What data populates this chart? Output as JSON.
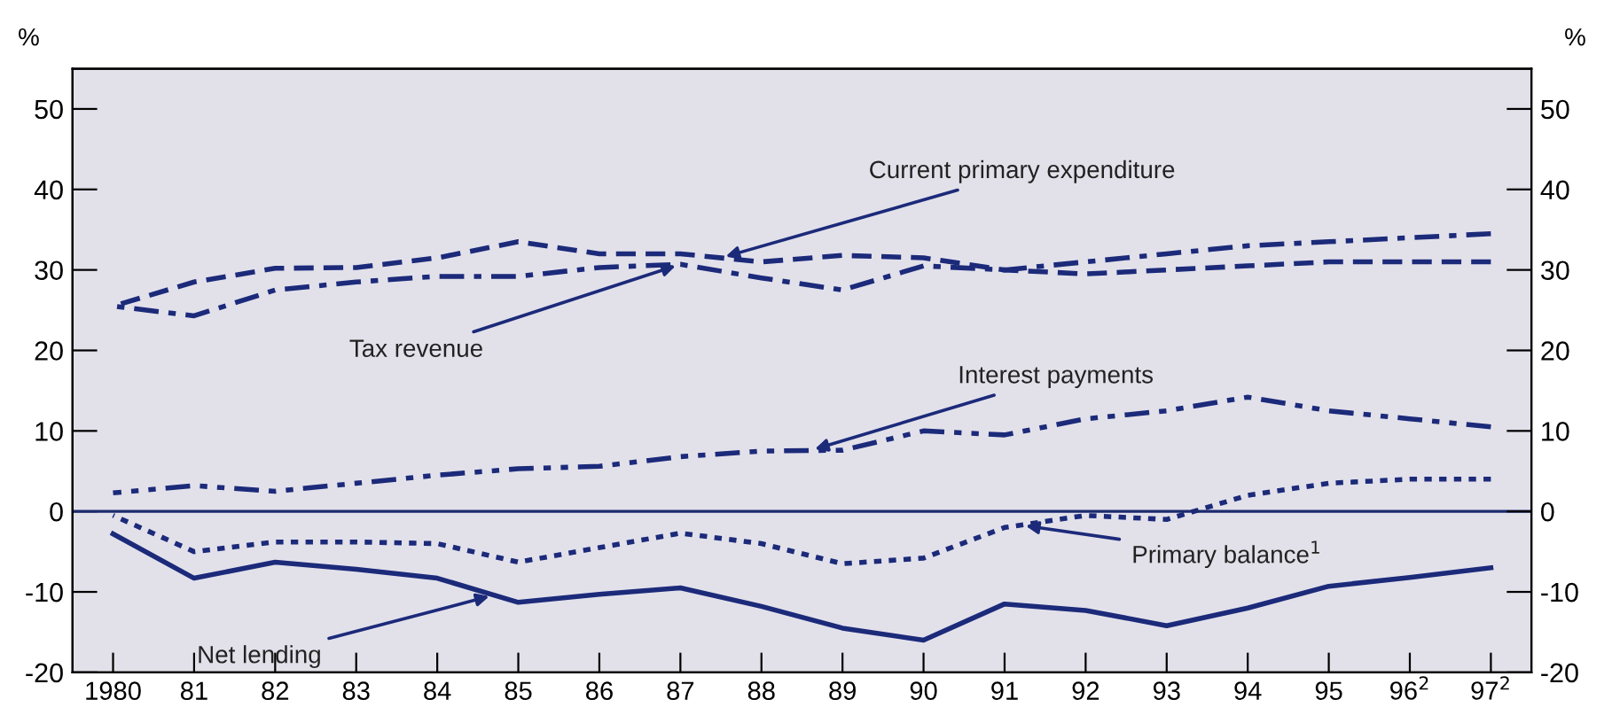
{
  "chart_data": {
    "type": "line",
    "ylabel": "%",
    "y2label": "%",
    "categories": [
      "1980",
      "81",
      "82",
      "83",
      "84",
      "85",
      "86",
      "87",
      "88",
      "89",
      "90",
      "91",
      "92",
      "93",
      "94",
      "95",
      "96$^{2}$",
      "97$^{2}$"
    ],
    "ylim": [
      -20,
      55
    ],
    "yticks": [
      -20,
      -10,
      0,
      10,
      20,
      30,
      40,
      50
    ],
    "y2lim": [
      -20,
      55
    ],
    "y2ticks": [
      -20,
      -10,
      0,
      10,
      20,
      30,
      40,
      50
    ],
    "ref_lines": [
      {
        "axis": "y",
        "value": 0,
        "color": "#1c2a6e",
        "line_style": "solid"
      }
    ],
    "grid": false,
    "legend": false,
    "series": [
      {
        "name": "Tax revenue",
        "color": "#1c2a7a",
        "line_style": "dashdot",
        "values": [
          25.5,
          24.3,
          27.5,
          28.5,
          29.2,
          29.2,
          30.3,
          30.7,
          29.0,
          27.5,
          30.5,
          30.0,
          31.0,
          32.0,
          33.0,
          33.5,
          34.0,
          34.5
        ]
      },
      {
        "name": "Current primary expenditure",
        "color": "#1c2a7a",
        "line_style": "dashed",
        "values": [
          25.5,
          28.5,
          30.2,
          30.3,
          31.5,
          33.5,
          32.0,
          32.0,
          31.0,
          31.8,
          31.5,
          30.0,
          29.5,
          30.0,
          30.5,
          31.0,
          31.0,
          31.0
        ]
      },
      {
        "name": "Interest payments",
        "color": "#1c2a7a",
        "line_style": "dashdotdot",
        "values": [
          2.3,
          3.2,
          2.5,
          3.5,
          4.5,
          5.3,
          5.6,
          6.8,
          7.5,
          7.6,
          10.0,
          9.5,
          11.5,
          12.5,
          14.2,
          12.5,
          11.5,
          10.5
        ]
      },
      {
        "name": "Primary balance$^{1}$",
        "color": "#1c2a7a",
        "line_style": "dotted",
        "values": [
          -0.5,
          -5.0,
          -3.8,
          -3.8,
          -4.0,
          -6.3,
          -4.5,
          -2.7,
          -4.0,
          -6.5,
          -5.8,
          -2.0,
          -0.5,
          -1.0,
          2.0,
          3.5,
          4.0,
          4.0
        ]
      },
      {
        "name": "Net lending",
        "color": "#1c2a7a",
        "line_style": "solid",
        "values": [
          -2.8,
          -8.3,
          -6.3,
          -7.2,
          -8.3,
          -11.3,
          -10.3,
          -9.5,
          -11.8,
          -14.5,
          -16.0,
          -11.5,
          -12.3,
          -14.2,
          -12.0,
          -9.3,
          -8.2,
          -7.0
        ]
      }
    ]
  }
}
